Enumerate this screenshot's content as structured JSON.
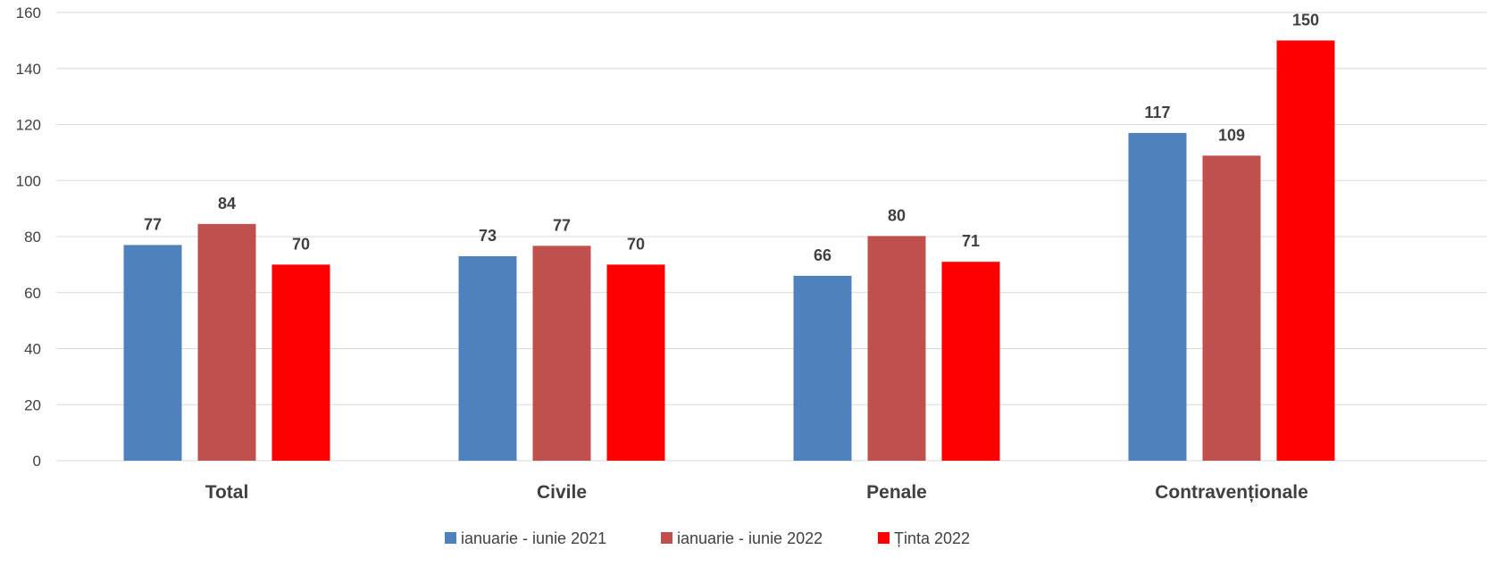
{
  "chart_data": {
    "type": "bar",
    "categories": [
      "Total",
      "Civile",
      "Penale",
      "Contravenționale"
    ],
    "series": [
      {
        "name": "ianuarie - iunie 2021",
        "values": [
          77,
          73,
          66,
          117
        ],
        "labels": [
          "77",
          "73",
          "66",
          "117"
        ],
        "color": "#4f81bd"
      },
      {
        "name": "ianuarie - iunie 2022",
        "values": [
          84.5,
          76.7,
          80.2,
          108.9
        ],
        "labels": [
          "84",
          "77",
          "80",
          "109"
        ],
        "color": "#c0504d"
      },
      {
        "name": "Ținta 2022",
        "values": [
          70,
          70,
          71,
          150
        ],
        "labels": [
          "70",
          "70",
          "71",
          "150"
        ],
        "color": "#ff0000"
      }
    ],
    "ylim": [
      0,
      160
    ],
    "yticks": [
      0,
      20,
      40,
      60,
      80,
      100,
      120,
      140,
      160
    ],
    "grid": true,
    "legend_position": "bottom"
  }
}
